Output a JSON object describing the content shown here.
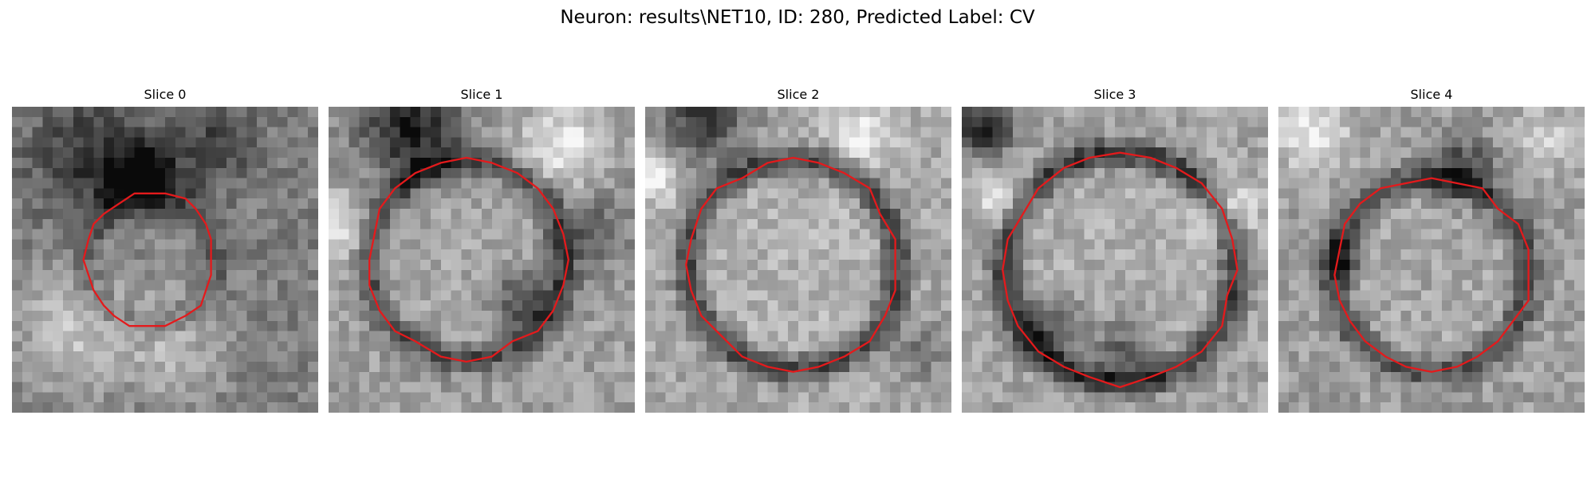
{
  "figure": {
    "title": "Neuron: results\\NET10, ID: 280, Predicted Label: CV"
  },
  "panels": [
    {
      "title": "Slice 0"
    },
    {
      "title": "Slice 1"
    },
    {
      "title": "Slice 2"
    },
    {
      "title": "Slice 3"
    },
    {
      "title": "Slice 4"
    }
  ],
  "colors": {
    "contour": "#e41a1c",
    "background": "#ffffff"
  }
}
